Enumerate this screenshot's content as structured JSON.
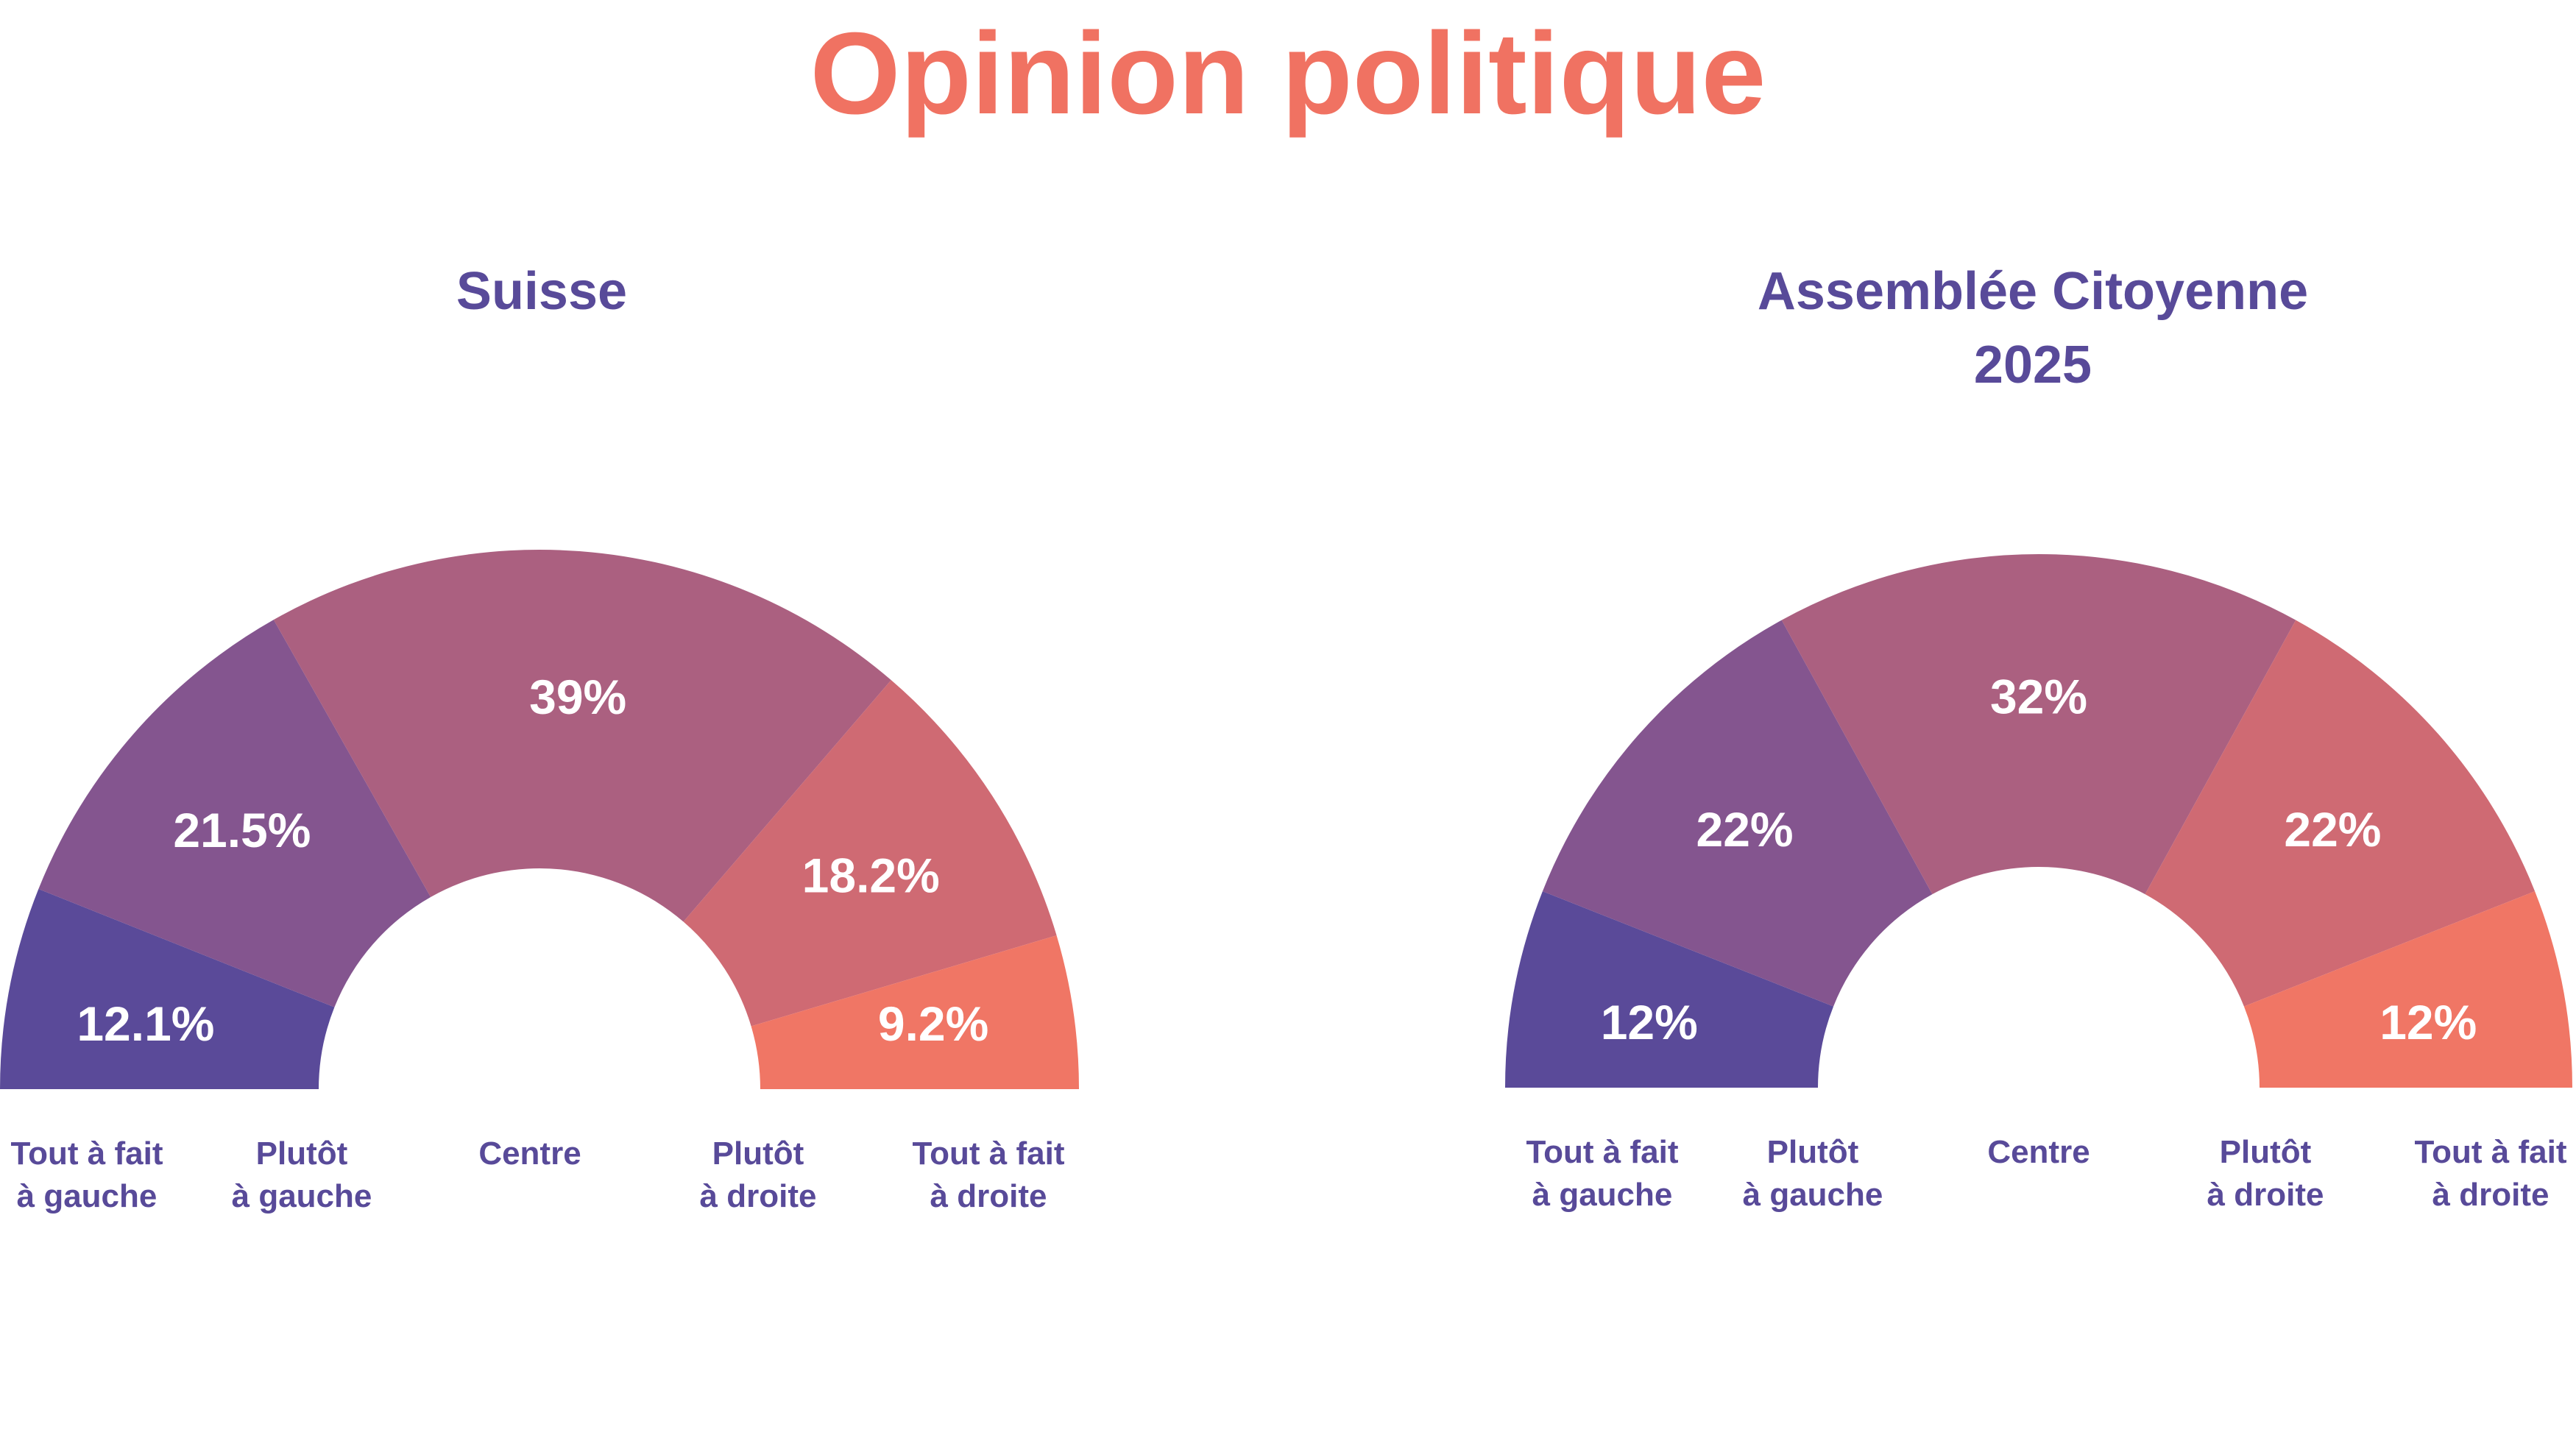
{
  "title": "Opinion politique",
  "colors": {
    "title": "#f07262",
    "labels": "#584a99",
    "slices": [
      "#5a4a99",
      "#84558f",
      "#ab6080",
      "#cf6a73",
      "#f07665"
    ]
  },
  "chart_data": [
    {
      "type": "pie",
      "variant": "semi-donut",
      "title_lines": [
        "Suisse"
      ],
      "categories": [
        [
          "Tout à fait",
          "à gauche"
        ],
        [
          "Plutôt",
          "à gauche"
        ],
        [
          "Centre"
        ],
        [
          "Plutôt",
          "à droite"
        ],
        [
          "Tout à fait",
          "à droite"
        ]
      ],
      "values": [
        12.1,
        21.5,
        39,
        18.2,
        9.2
      ],
      "value_labels": [
        "12.1%",
        "21.5%",
        "39%",
        "18.2%",
        "9.2%"
      ]
    },
    {
      "type": "pie",
      "variant": "semi-donut",
      "title_lines": [
        "Assemblée Citoyenne",
        "2025"
      ],
      "categories": [
        [
          "Tout à fait",
          "à gauche"
        ],
        [
          "Plutôt",
          "à gauche"
        ],
        [
          "Centre"
        ],
        [
          "Plutôt",
          "à droite"
        ],
        [
          "Tout à fait",
          "à droite"
        ]
      ],
      "values": [
        12,
        22,
        32,
        22,
        12
      ],
      "value_labels": [
        "12%",
        "22%",
        "32%",
        "22%",
        "12%"
      ]
    }
  ]
}
